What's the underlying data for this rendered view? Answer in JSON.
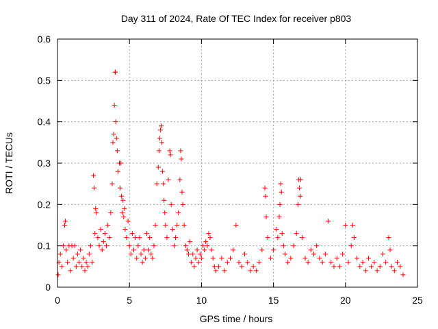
{
  "chart_data": {
    "type": "scatter",
    "title": "Day 311 of 2024, Rate Of TEC Index for receiver p803",
    "xlabel": "GPS time / hours",
    "ylabel": "ROTI / TECUs",
    "xlim": [
      0,
      25
    ],
    "ylim": [
      0,
      0.6
    ],
    "x_ticks": [
      0,
      5,
      10,
      15,
      20,
      25
    ],
    "x_tick_labels": [
      "0",
      "5",
      "10",
      "15",
      "20",
      "25"
    ],
    "y_ticks": [
      0,
      0.1,
      0.2,
      0.3,
      0.4,
      0.5,
      0.6
    ],
    "y_tick_labels": [
      "0",
      "0.1",
      "0.2",
      "0.3",
      "0.4",
      "0.5",
      "0.6"
    ],
    "grid": true,
    "marker": "plus",
    "color": "#ff0000",
    "series": [
      {
        "points": [
          [
            0.05,
            0.03
          ],
          [
            0.1,
            0.06
          ],
          [
            0.2,
            0.08
          ],
          [
            0.3,
            0.05
          ],
          [
            0.4,
            0.1
          ],
          [
            0.5,
            0.15
          ],
          [
            0.55,
            0.16
          ],
          [
            0.6,
            0.09
          ],
          [
            0.7,
            0.06
          ],
          [
            0.8,
            0.1
          ],
          [
            0.9,
            0.04
          ],
          [
            1.0,
            0.1
          ],
          [
            1.1,
            0.07
          ],
          [
            1.2,
            0.1
          ],
          [
            1.3,
            0.05
          ],
          [
            1.4,
            0.08
          ],
          [
            1.5,
            0.06
          ],
          [
            1.6,
            0.09
          ],
          [
            1.7,
            0.05
          ],
          [
            1.8,
            0.07
          ],
          [
            1.9,
            0.04
          ],
          [
            2.0,
            0.06
          ],
          [
            2.1,
            0.05
          ],
          [
            2.2,
            0.08
          ],
          [
            2.3,
            0.1
          ],
          [
            2.4,
            0.06
          ],
          [
            2.5,
            0.27
          ],
          [
            2.55,
            0.24
          ],
          [
            2.6,
            0.13
          ],
          [
            2.65,
            0.19
          ],
          [
            2.7,
            0.18
          ],
          [
            2.8,
            0.12
          ],
          [
            2.9,
            0.1
          ],
          [
            3.0,
            0.14
          ],
          [
            3.1,
            0.09
          ],
          [
            3.2,
            0.11
          ],
          [
            3.3,
            0.13
          ],
          [
            3.4,
            0.1
          ],
          [
            3.5,
            0.15
          ],
          [
            3.6,
            0.12
          ],
          [
            3.7,
            0.18
          ],
          [
            3.8,
            0.25
          ],
          [
            3.85,
            0.35
          ],
          [
            3.9,
            0.37
          ],
          [
            3.95,
            0.44
          ],
          [
            4.0,
            0.52
          ],
          [
            4.02,
            0.52
          ],
          [
            4.05,
            0.4
          ],
          [
            4.1,
            0.36
          ],
          [
            4.15,
            0.33
          ],
          [
            4.2,
            0.28
          ],
          [
            4.3,
            0.3
          ],
          [
            4.35,
            0.24
          ],
          [
            4.4,
            0.3
          ],
          [
            4.45,
            0.22
          ],
          [
            4.5,
            0.18
          ],
          [
            4.55,
            0.21
          ],
          [
            4.6,
            0.17
          ],
          [
            4.65,
            0.19
          ],
          [
            4.7,
            0.14
          ],
          [
            4.8,
            0.12
          ],
          [
            4.9,
            0.16
          ],
          [
            5.0,
            0.1
          ],
          [
            5.1,
            0.08
          ],
          [
            5.2,
            0.13
          ],
          [
            5.3,
            0.09
          ],
          [
            5.4,
            0.12
          ],
          [
            5.5,
            0.07
          ],
          [
            5.6,
            0.1
          ],
          [
            5.7,
            0.12
          ],
          [
            5.8,
            0.08
          ],
          [
            5.9,
            0.06
          ],
          [
            6.0,
            0.09
          ],
          [
            6.1,
            0.07
          ],
          [
            6.2,
            0.13
          ],
          [
            6.3,
            0.09
          ],
          [
            6.4,
            0.12
          ],
          [
            6.5,
            0.08
          ],
          [
            6.6,
            0.07
          ],
          [
            6.7,
            0.1
          ],
          [
            6.8,
            0.15
          ],
          [
            6.9,
            0.25
          ],
          [
            7.0,
            0.29
          ],
          [
            7.05,
            0.33
          ],
          [
            7.1,
            0.36
          ],
          [
            7.15,
            0.38
          ],
          [
            7.2,
            0.39
          ],
          [
            7.25,
            0.35
          ],
          [
            7.3,
            0.28
          ],
          [
            7.35,
            0.25
          ],
          [
            7.4,
            0.21
          ],
          [
            7.45,
            0.18
          ],
          [
            7.5,
            0.15
          ],
          [
            7.6,
            0.12
          ],
          [
            7.7,
            0.26
          ],
          [
            7.8,
            0.33
          ],
          [
            7.85,
            0.32
          ],
          [
            7.9,
            0.2
          ],
          [
            8.0,
            0.14
          ],
          [
            8.1,
            0.1
          ],
          [
            8.2,
            0.12
          ],
          [
            8.3,
            0.15
          ],
          [
            8.4,
            0.18
          ],
          [
            8.5,
            0.26
          ],
          [
            8.55,
            0.33
          ],
          [
            8.6,
            0.31
          ],
          [
            8.65,
            0.23
          ],
          [
            8.7,
            0.2
          ],
          [
            8.8,
            0.15
          ],
          [
            8.9,
            0.1
          ],
          [
            9.0,
            0.09
          ],
          [
            9.1,
            0.08
          ],
          [
            9.2,
            0.11
          ],
          [
            9.3,
            0.06
          ],
          [
            9.4,
            0.08
          ],
          [
            9.5,
            0.05
          ],
          [
            9.6,
            0.07
          ],
          [
            9.7,
            0.09
          ],
          [
            9.8,
            0.06
          ],
          [
            9.9,
            0.08
          ],
          [
            10.0,
            0.07
          ],
          [
            10.1,
            0.1
          ],
          [
            10.2,
            0.09
          ],
          [
            10.3,
            0.11
          ],
          [
            10.4,
            0.1
          ],
          [
            10.5,
            0.13
          ],
          [
            10.6,
            0.12
          ],
          [
            10.7,
            0.09
          ],
          [
            10.8,
            0.07
          ],
          [
            10.9,
            0.05
          ],
          [
            11.0,
            0.04
          ],
          [
            11.2,
            0.05
          ],
          [
            11.4,
            0.07
          ],
          [
            11.6,
            0.04
          ],
          [
            11.8,
            0.06
          ],
          [
            12.0,
            0.07
          ],
          [
            12.2,
            0.09
          ],
          [
            12.4,
            0.15
          ],
          [
            12.6,
            0.06
          ],
          [
            12.8,
            0.05
          ],
          [
            13.0,
            0.08
          ],
          [
            13.2,
            0.06
          ],
          [
            13.4,
            0.04
          ],
          [
            13.6,
            0.05
          ],
          [
            13.8,
            0.04
          ],
          [
            14.0,
            0.06
          ],
          [
            14.2,
            0.09
          ],
          [
            14.4,
            0.24
          ],
          [
            14.45,
            0.22
          ],
          [
            14.5,
            0.17
          ],
          [
            14.6,
            0.12
          ],
          [
            14.8,
            0.07
          ],
          [
            15.0,
            0.09
          ],
          [
            15.2,
            0.14
          ],
          [
            15.3,
            0.12
          ],
          [
            15.4,
            0.17
          ],
          [
            15.45,
            0.2
          ],
          [
            15.5,
            0.25
          ],
          [
            15.55,
            0.23
          ],
          [
            15.6,
            0.13
          ],
          [
            15.7,
            0.1
          ],
          [
            15.8,
            0.08
          ],
          [
            16.0,
            0.06
          ],
          [
            16.2,
            0.07
          ],
          [
            16.4,
            0.1
          ],
          [
            16.6,
            0.13
          ],
          [
            16.7,
            0.2
          ],
          [
            16.75,
            0.26
          ],
          [
            16.8,
            0.24
          ],
          [
            16.85,
            0.22
          ],
          [
            16.9,
            0.26
          ],
          [
            17.0,
            0.12
          ],
          [
            17.2,
            0.07
          ],
          [
            17.4,
            0.06
          ],
          [
            17.6,
            0.09
          ],
          [
            17.8,
            0.08
          ],
          [
            18.0,
            0.1
          ],
          [
            18.2,
            0.07
          ],
          [
            18.4,
            0.06
          ],
          [
            18.6,
            0.08
          ],
          [
            18.8,
            0.16
          ],
          [
            19.0,
            0.06
          ],
          [
            19.2,
            0.05
          ],
          [
            19.4,
            0.07
          ],
          [
            19.6,
            0.05
          ],
          [
            19.8,
            0.08
          ],
          [
            20.0,
            0.15
          ],
          [
            20.2,
            0.06
          ],
          [
            20.4,
            0.1
          ],
          [
            20.5,
            0.15
          ],
          [
            20.6,
            0.12
          ],
          [
            20.8,
            0.07
          ],
          [
            21.0,
            0.05
          ],
          [
            21.2,
            0.06
          ],
          [
            21.4,
            0.04
          ],
          [
            21.6,
            0.07
          ],
          [
            21.8,
            0.05
          ],
          [
            22.0,
            0.06
          ],
          [
            22.2,
            0.04
          ],
          [
            22.4,
            0.05
          ],
          [
            22.6,
            0.08
          ],
          [
            22.8,
            0.06
          ],
          [
            23.0,
            0.12
          ],
          [
            23.1,
            0.09
          ],
          [
            23.2,
            0.05
          ],
          [
            23.4,
            0.04
          ],
          [
            23.6,
            0.06
          ],
          [
            23.8,
            0.05
          ],
          [
            24.0,
            0.03
          ]
        ]
      }
    ]
  }
}
